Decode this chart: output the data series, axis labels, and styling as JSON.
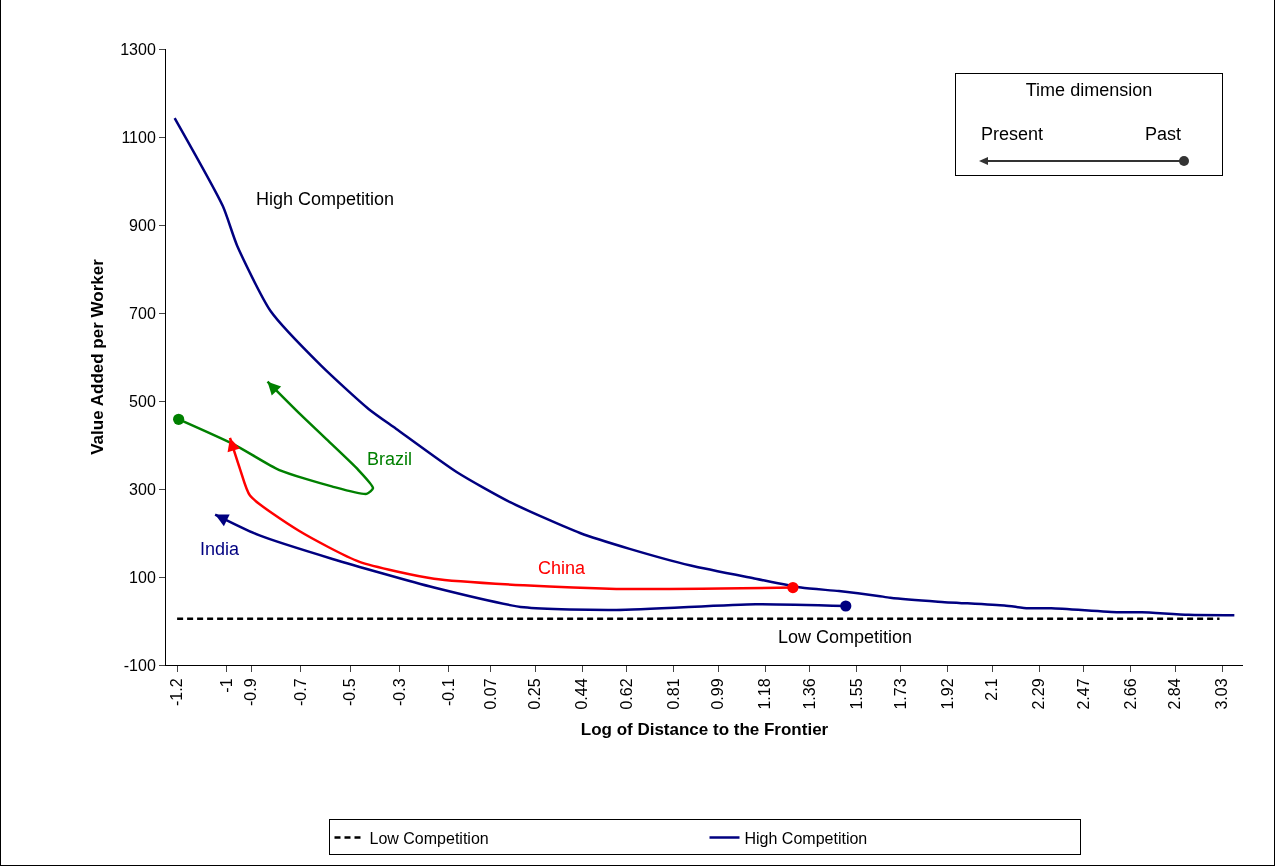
{
  "chart_data": {
    "type": "line",
    "xlabel": "Log of Distance to the Frontier",
    "ylabel": "Value Added per Worker",
    "xlim": [
      -1.245,
      3.115
    ],
    "ylim": [
      -100,
      1300
    ],
    "xticks": [
      -1.2,
      -1,
      -0.9,
      -0.7,
      -0.5,
      -0.3,
      -0.1,
      0.07,
      0.25,
      0.44,
      0.62,
      0.81,
      0.99,
      1.18,
      1.36,
      1.55,
      1.73,
      1.92,
      2.1,
      2.29,
      2.47,
      2.66,
      2.84,
      3.03
    ],
    "yticks": [
      -100,
      100,
      300,
      500,
      700,
      900,
      1100,
      1300
    ],
    "grid": false,
    "legend": "bottom",
    "series": [
      {
        "name": "Low Competition",
        "color": "#000000",
        "line_style": "dashed",
        "x": [
          -1.2,
          3.02
        ],
        "values": [
          5,
          5
        ]
      },
      {
        "name": "High Competition",
        "color": "#000080",
        "line_style": "solid",
        "x": [
          -1.21,
          -1.015,
          -0.957,
          -0.821,
          -0.618,
          -0.425,
          -0.314,
          -0.067,
          0.148,
          0.431,
          0.632,
          0.879,
          1.142,
          1.326,
          1.479,
          1.638,
          1.687,
          1.88,
          2.149,
          2.245,
          2.339,
          2.611,
          2.705,
          2.894,
          3.08
        ],
        "values": [
          1143,
          943,
          853,
          704,
          581,
          482,
          437,
          338,
          270,
          200,
          164,
          126,
          96,
          76,
          68,
          57,
          53,
          44,
          35,
          29,
          29,
          20,
          20,
          14,
          13
        ]
      },
      {
        "name": "China",
        "color": "#ff0000",
        "x": [
          1.299,
          0.578,
          0.204,
          -0.16,
          -0.464,
          -0.707,
          -0.905,
          -0.944,
          -0.986
        ],
        "values": [
          76,
          73,
          81,
          96,
          135,
          205,
          285,
          343,
          416
        ]
      },
      {
        "name": "Brazil",
        "color": "#008000",
        "x": [
          -1.2,
          -0.969,
          -0.786,
          -0.574,
          -0.433,
          -0.407,
          -0.466,
          -0.601,
          -0.702,
          -0.834
        ],
        "values": [
          460,
          401,
          343,
          306,
          289,
          302,
          343,
          416,
          470,
          544
        ]
      },
      {
        "name": "India",
        "color": "#000080",
        "x": [
          1.513,
          1.142,
          0.578,
          0.204,
          -0.16,
          -0.571,
          -0.869,
          -1.046
        ],
        "values": [
          34,
          38,
          25,
          31,
          76,
          141,
          195,
          242
        ]
      }
    ],
    "annotations": [
      "High Competition",
      "Low Competition",
      "Time dimension",
      "Present",
      "Past"
    ]
  }
}
